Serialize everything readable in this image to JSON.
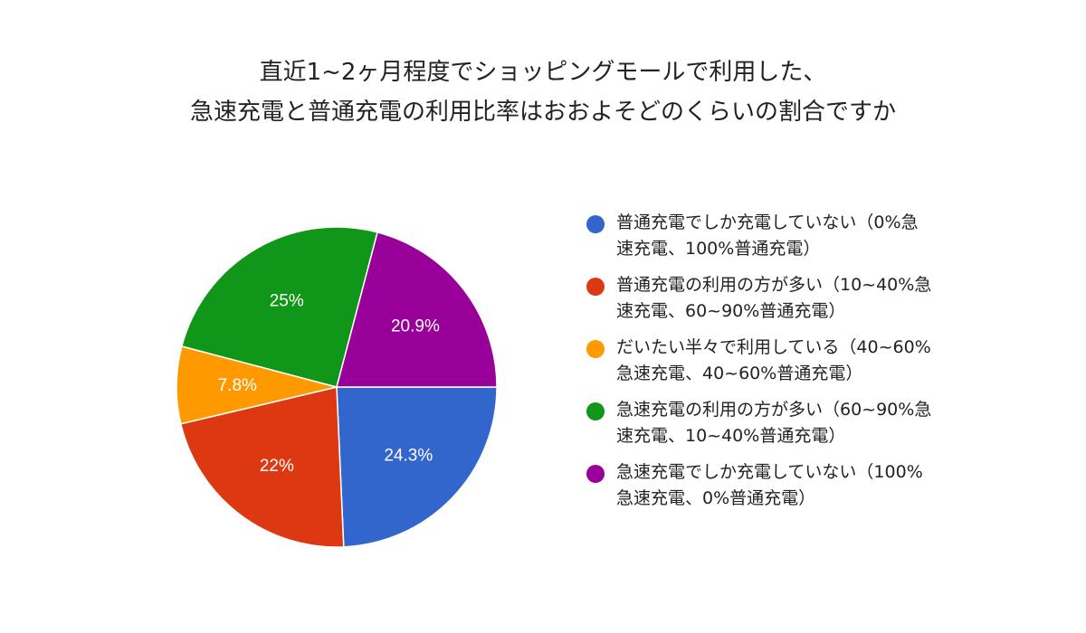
{
  "chart_data": {
    "type": "pie",
    "title": [
      "直近1~2ヶ月程度でショッピングモールで利用した、",
      "急速充電と普通充電の利用比率はおおよそどのくらいの割合ですか"
    ],
    "legend_position": "right",
    "slices": [
      {
        "label": [
          "普通充電でしか充電していない（0%急",
          "速充電、100%普通充電）"
        ],
        "value": 24.3,
        "value_label": "24.3%",
        "color": "#3366cc"
      },
      {
        "label": [
          "普通充電の利用の方が多い（10~40%急",
          "速充電、60~90%普通充電）"
        ],
        "value": 22,
        "value_label": "22%",
        "color": "#dc3912"
      },
      {
        "label": [
          "だいたい半々で利用している（40~60%",
          "急速充電、40~60%普通充電）"
        ],
        "value": 7.8,
        "value_label": "7.8%",
        "color": "#ff9900"
      },
      {
        "label": [
          "急速充電の利用の方が多い（60~90%急",
          "速充電、10~40%普通充電）"
        ],
        "value": 25,
        "value_label": "25%",
        "color": "#109618"
      },
      {
        "label": [
          "急速充電でしか充電していない（100%",
          "急速充電、0%普通充電）"
        ],
        "value": 20.9,
        "value_label": "20.9%",
        "color": "#990099"
      }
    ]
  }
}
